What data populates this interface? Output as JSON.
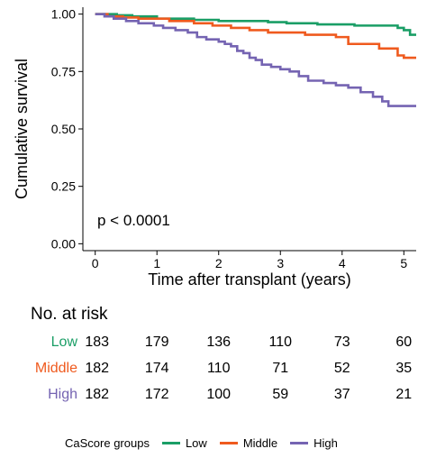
{
  "chart_data": {
    "type": "line",
    "xlabel": "Time after transplant (years)",
    "ylabel": "Cumulative survival",
    "xlim": [
      -0.2,
      5.2
    ],
    "ylim": [
      -0.03,
      1.03
    ],
    "xticks": [
      "0",
      "1",
      "2",
      "3",
      "4",
      "5"
    ],
    "yticks": [
      "0.00",
      "0.25",
      "0.50",
      "0.75",
      "1.00"
    ],
    "annotation": "p < 0.0001",
    "series": [
      {
        "name": "Low",
        "color": "#1a9e66",
        "steps": [
          [
            0,
            1.0
          ],
          [
            0.35,
            0.995
          ],
          [
            0.6,
            0.99
          ],
          [
            1.0,
            0.98
          ],
          [
            1.6,
            0.975
          ],
          [
            2.0,
            0.97
          ],
          [
            2.8,
            0.965
          ],
          [
            3.1,
            0.96
          ],
          [
            3.6,
            0.955
          ],
          [
            4.2,
            0.95
          ],
          [
            4.9,
            0.94
          ],
          [
            5.0,
            0.93
          ],
          [
            5.1,
            0.91
          ],
          [
            5.2,
            0.91
          ]
        ]
      },
      {
        "name": "Middle",
        "color": "#ef5a1e",
        "steps": [
          [
            0,
            1.0
          ],
          [
            0.2,
            0.99
          ],
          [
            0.45,
            0.985
          ],
          [
            0.7,
            0.98
          ],
          [
            1.2,
            0.97
          ],
          [
            1.6,
            0.96
          ],
          [
            1.9,
            0.95
          ],
          [
            2.2,
            0.94
          ],
          [
            2.5,
            0.93
          ],
          [
            2.8,
            0.92
          ],
          [
            3.4,
            0.91
          ],
          [
            3.9,
            0.9
          ],
          [
            4.1,
            0.87
          ],
          [
            4.6,
            0.85
          ],
          [
            4.9,
            0.82
          ],
          [
            5.0,
            0.81
          ],
          [
            5.2,
            0.81
          ]
        ]
      },
      {
        "name": "High",
        "color": "#7564b2",
        "steps": [
          [
            0,
            1.0
          ],
          [
            0.15,
            0.99
          ],
          [
            0.3,
            0.98
          ],
          [
            0.5,
            0.97
          ],
          [
            0.7,
            0.96
          ],
          [
            0.95,
            0.95
          ],
          [
            1.1,
            0.94
          ],
          [
            1.3,
            0.93
          ],
          [
            1.5,
            0.92
          ],
          [
            1.65,
            0.9
          ],
          [
            1.8,
            0.89
          ],
          [
            2.0,
            0.88
          ],
          [
            2.1,
            0.87
          ],
          [
            2.2,
            0.86
          ],
          [
            2.3,
            0.84
          ],
          [
            2.4,
            0.83
          ],
          [
            2.5,
            0.81
          ],
          [
            2.6,
            0.8
          ],
          [
            2.7,
            0.78
          ],
          [
            2.85,
            0.77
          ],
          [
            3.0,
            0.76
          ],
          [
            3.15,
            0.75
          ],
          [
            3.3,
            0.73
          ],
          [
            3.45,
            0.71
          ],
          [
            3.7,
            0.7
          ],
          [
            3.9,
            0.69
          ],
          [
            4.1,
            0.68
          ],
          [
            4.3,
            0.66
          ],
          [
            4.5,
            0.64
          ],
          [
            4.65,
            0.62
          ],
          [
            4.75,
            0.6
          ],
          [
            5.2,
            0.6
          ]
        ]
      }
    ]
  },
  "risk_table": {
    "title": "No. at risk",
    "groups": [
      {
        "label": "Low",
        "color": "#1a9e66",
        "values": [
          "183",
          "179",
          "136",
          "110",
          "73",
          "60"
        ]
      },
      {
        "label": "Middle",
        "color": "#ef5a1e",
        "values": [
          "182",
          "174",
          "110",
          "71",
          "52",
          "35"
        ]
      },
      {
        "label": "High",
        "color": "#7564b2",
        "values": [
          "182",
          "172",
          "100",
          "59",
          "37",
          "21"
        ]
      }
    ]
  },
  "legend": {
    "title": "CaScore groups",
    "items": [
      {
        "label": "Low",
        "color": "#1a9e66"
      },
      {
        "label": "Middle",
        "color": "#ef5a1e"
      },
      {
        "label": "High",
        "color": "#7564b2"
      }
    ]
  }
}
